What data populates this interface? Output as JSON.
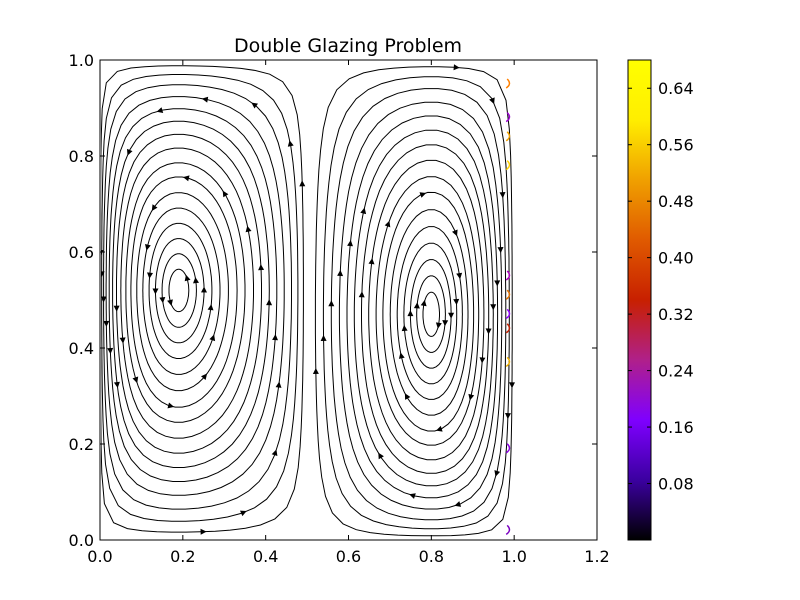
{
  "chart_data": {
    "type": "streamplot",
    "title": "Double Glazing Problem",
    "xlabel": "",
    "ylabel": "",
    "xlim": [
      0.0,
      1.2
    ],
    "ylim": [
      0.0,
      1.0
    ],
    "xticks": [
      "0.0",
      "0.2",
      "0.4",
      "0.6",
      "0.8",
      "1.0",
      "1.2"
    ],
    "yticks": [
      "0.0",
      "0.2",
      "0.4",
      "0.6",
      "0.8",
      "1.0"
    ],
    "domain": {
      "x": [
        0.0,
        1.0
      ],
      "y": [
        0.0,
        1.0
      ]
    },
    "vortices": [
      {
        "center": [
          0.19,
          0.52
        ],
        "rotation": "counterclockwise"
      },
      {
        "center": [
          0.8,
          0.47
        ],
        "rotation": "clockwise"
      }
    ],
    "colorbar": {
      "range": [
        0.0,
        0.68
      ],
      "ticks": [
        "0.08",
        "0.16",
        "0.24",
        "0.32",
        "0.40",
        "0.48",
        "0.56",
        "0.64"
      ],
      "colormap": [
        "#000000",
        "#3b00a0",
        "#7f00ff",
        "#b0208a",
        "#c82000",
        "#e05a00",
        "#f0a000",
        "#ffee00",
        "#ffff00"
      ]
    },
    "line_color": "#000000"
  }
}
